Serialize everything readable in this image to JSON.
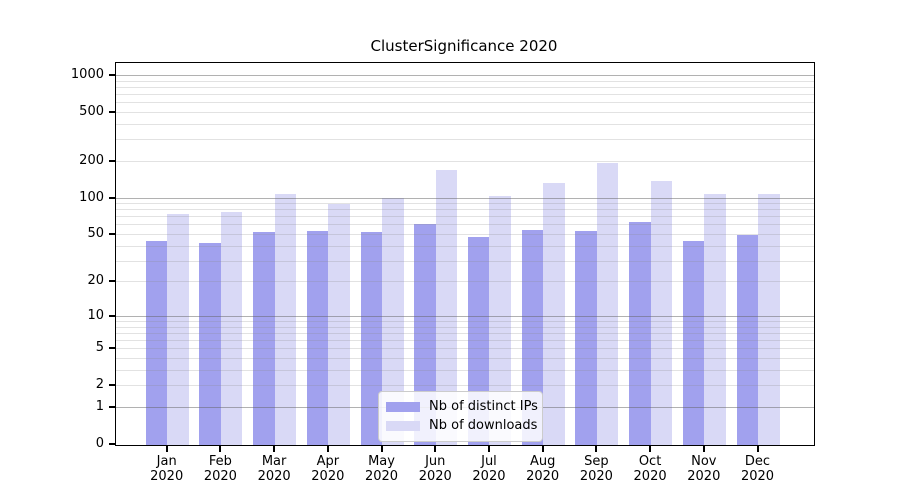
{
  "title": "ClusterSignificance 2020",
  "chart_data": {
    "type": "bar",
    "title": "ClusterSignificance 2020",
    "categories": [
      "Jan",
      "Feb",
      "Mar",
      "Apr",
      "May",
      "Jun",
      "Jul",
      "Aug",
      "Sep",
      "Oct",
      "Nov",
      "Dec"
    ],
    "category_year": "2020",
    "series": [
      {
        "name": "Nb of distinct IPs",
        "color": "#a1a1ee",
        "values": [
          45,
          43,
          53,
          54,
          53,
          62,
          48,
          55,
          54,
          64,
          45,
          50
        ]
      },
      {
        "name": "Nb of downloads",
        "color": "#d9d9f6",
        "values": [
          75,
          77,
          110,
          90,
          101,
          171,
          104,
          135,
          196,
          138,
          108,
          110
        ]
      }
    ],
    "y_scale": "log1p",
    "y_ticks": [
      0,
      1,
      2,
      5,
      10,
      20,
      50,
      100,
      200,
      500,
      1000
    ],
    "ylim": [
      0,
      1277
    ],
    "grid": true,
    "legend_position": "bottom-center",
    "colors": {
      "axis": "#000000",
      "major_grid": "rgba(100,100,100,0.5)",
      "minor_grid": "rgba(140,140,140,0.25)",
      "background": "#ffffff"
    }
  }
}
